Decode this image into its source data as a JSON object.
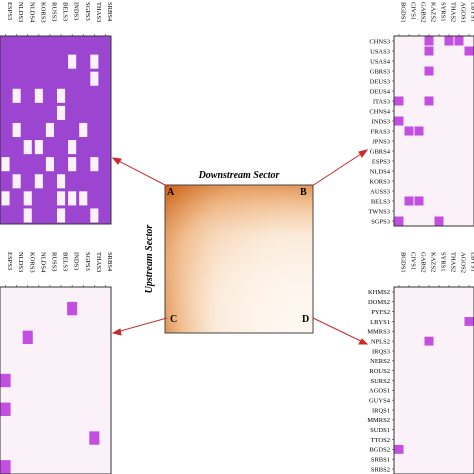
{
  "chart_data": [
    {
      "type": "heatmap",
      "panel": "center",
      "xlabel": "Downstream Sector",
      "ylabel": "Upstream Sector",
      "corner_labels": [
        "A",
        "B",
        "C",
        "D"
      ],
      "colors": {
        "dense": "#d2691e",
        "light": "#fdeee0",
        "frame": "#555555"
      }
    },
    {
      "type": "heatmap",
      "panel": "A",
      "x_labels": [
        "ESPS3",
        "NLDS3",
        "NLDS4",
        "KORS3",
        "RUSS3",
        "BELS3",
        "INDS3",
        "SGPS3",
        "THAS3",
        "SRBS4"
      ],
      "y_labels": [],
      "cells_off": [
        [
          1,
          6
        ],
        [
          1,
          8
        ],
        [
          2,
          8
        ],
        [
          3,
          1
        ],
        [
          3,
          3
        ],
        [
          3,
          5
        ],
        [
          4,
          5
        ],
        [
          5,
          1
        ],
        [
          5,
          4
        ],
        [
          5,
          7
        ],
        [
          6,
          2
        ],
        [
          6,
          3
        ],
        [
          6,
          6
        ],
        [
          7,
          0
        ],
        [
          7,
          4
        ],
        [
          7,
          6
        ],
        [
          7,
          8
        ],
        [
          8,
          1
        ],
        [
          8,
          3
        ],
        [
          8,
          5
        ],
        [
          9,
          0
        ],
        [
          9,
          2
        ],
        [
          9,
          5
        ],
        [
          9,
          6
        ],
        [
          9,
          7
        ],
        [
          10,
          2
        ],
        [
          10,
          5
        ],
        [
          10,
          8
        ]
      ],
      "rows": 11,
      "colors": {
        "on": "#9b45d1",
        "off": "#fbf1f9"
      }
    },
    {
      "type": "heatmap",
      "panel": "B",
      "x_labels": [
        "BGDS1",
        "CIVS1",
        "GABS2",
        "KAZS2",
        "SYRS1",
        "THAS2",
        "AGOS1",
        "LBYS1"
      ],
      "y_labels": [
        "CHNS3",
        "USAS3",
        "USAS4",
        "GBRS3",
        "DEUS3",
        "DEUS4",
        "ITAS3",
        "CHNS4",
        "INDS3",
        "FRAS3",
        "JPNS3",
        "GBRS4",
        "ESPS3",
        "NLDS4",
        "KORS3",
        "AUSS3",
        "BELS3",
        "TWNS3",
        "SGPS3"
      ],
      "cells_on": [
        [
          0,
          3
        ],
        [
          0,
          5
        ],
        [
          0,
          6
        ],
        [
          1,
          3
        ],
        [
          1,
          7
        ],
        [
          3,
          3
        ],
        [
          6,
          0
        ],
        [
          6,
          3
        ],
        [
          8,
          0
        ],
        [
          9,
          1
        ],
        [
          9,
          2
        ],
        [
          16,
          1
        ],
        [
          16,
          2
        ],
        [
          18,
          0
        ],
        [
          18,
          4
        ]
      ],
      "colors": {
        "on": "#c24fe0",
        "off": "#fbf1f9"
      }
    },
    {
      "type": "heatmap",
      "panel": "C",
      "x_labels": [
        "ESPS3",
        "NLDS3",
        "KORS3",
        "NLDS4",
        "RUSS3",
        "BELS3",
        "INDS3",
        "SGPS3",
        "THAS3",
        "SRBS4"
      ],
      "y_labels": [],
      "cells_on": [
        [
          1,
          6
        ],
        [
          3,
          2
        ],
        [
          6,
          0
        ],
        [
          8,
          0
        ],
        [
          10,
          8
        ],
        [
          12,
          0
        ]
      ],
      "rows": 13,
      "colors": {
        "on": "#c24fe0",
        "off": "#fbf1f9"
      }
    },
    {
      "type": "heatmap",
      "panel": "D",
      "x_labels": [
        "BGDS1",
        "CIVS1",
        "GABS2",
        "KAZS2",
        "SYRS1",
        "THAS2",
        "AGOS2",
        "LBYS1"
      ],
      "y_labels": [
        "KHMS2",
        "DOMS2",
        "PYFS2",
        "LBYS1",
        "MMRS3",
        "NPLS2",
        "IRQS3",
        "NERS2",
        "ROUS2",
        "SURS2",
        "AGOS1",
        "GUYS4",
        "IRQS1",
        "MMRS2",
        "SUDS1",
        "TTOS2",
        "BGDS2",
        "SRBS1",
        "SRBS2"
      ],
      "cells_on": [
        [
          3,
          7
        ],
        [
          5,
          3
        ],
        [
          16,
          0
        ]
      ],
      "colors": {
        "on": "#c24fe0",
        "off": "#fbf1f9"
      }
    }
  ]
}
